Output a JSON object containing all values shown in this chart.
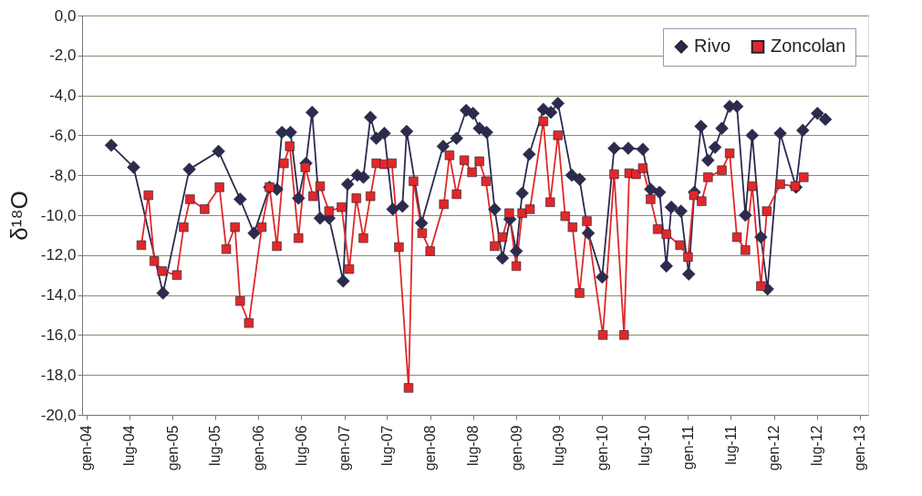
{
  "chart_data": {
    "type": "line",
    "ylabel": "δ¹⁸O",
    "xlim": [
      "2003-12-13",
      "2013-02-05"
    ],
    "xticks": [
      {
        "value": "2004-01-01",
        "label": "gen-04"
      },
      {
        "value": "2004-07-01",
        "label": "lug-04"
      },
      {
        "value": "2005-01-01",
        "label": "gen-05"
      },
      {
        "value": "2005-07-01",
        "label": "lug-05"
      },
      {
        "value": "2006-01-01",
        "label": "gen-06"
      },
      {
        "value": "2006-07-01",
        "label": "lug-06"
      },
      {
        "value": "2007-01-01",
        "label": "gen-07"
      },
      {
        "value": "2007-07-01",
        "label": "lug-07"
      },
      {
        "value": "2008-01-01",
        "label": "gen-08"
      },
      {
        "value": "2008-07-01",
        "label": "lug-08"
      },
      {
        "value": "2009-01-01",
        "label": "gen-09"
      },
      {
        "value": "2009-07-01",
        "label": "lug-09"
      },
      {
        "value": "2010-01-01",
        "label": "gen-10"
      },
      {
        "value": "2010-07-01",
        "label": "lug-10"
      },
      {
        "value": "2011-01-01",
        "label": "gen-11"
      },
      {
        "value": "2011-07-01",
        "label": "lug-11"
      },
      {
        "value": "2012-01-01",
        "label": "gen-12"
      },
      {
        "value": "2012-07-01",
        "label": "lug-12"
      },
      {
        "value": "2013-01-01",
        "label": "gen-13"
      }
    ],
    "ylim": [
      -20,
      0
    ],
    "yticks": [
      {
        "value": 0,
        "label": "0,0"
      },
      {
        "value": -2,
        "label": "-2,0"
      },
      {
        "value": -4,
        "label": "-4,0"
      },
      {
        "value": -6,
        "label": "-6,0"
      },
      {
        "value": -8,
        "label": "-8,0"
      },
      {
        "value": -10,
        "label": "-10,0"
      },
      {
        "value": -12,
        "label": "-12,0"
      },
      {
        "value": -14,
        "label": "-14,0"
      },
      {
        "value": -16,
        "label": "-16,0"
      },
      {
        "value": -18,
        "label": "-18,0"
      },
      {
        "value": -20,
        "label": "-20,0"
      }
    ],
    "grid": "y",
    "legend": "top right",
    "line_style": "solid",
    "series": [
      {
        "name": "Rivo",
        "color": "#2b2b4f",
        "marker": "diamond",
        "x": [
          "2004-04-15",
          "2004-07-19",
          "2004-11-21",
          "2005-03-13",
          "2005-07-15",
          "2005-10-15",
          "2005-12-13",
          "2006-02-17",
          "2006-03-20",
          "2006-04-11",
          "2006-05-17",
          "2006-06-20",
          "2006-07-22",
          "2006-08-17",
          "2006-09-20",
          "2006-10-28",
          "2006-12-27",
          "2007-01-15",
          "2007-02-25",
          "2007-03-23",
          "2007-04-22",
          "2007-05-17",
          "2007-06-20",
          "2007-07-26",
          "2007-09-05",
          "2007-09-23",
          "2007-11-25",
          "2008-02-25",
          "2008-04-22",
          "2008-06-02",
          "2008-07-01",
          "2008-07-28",
          "2008-08-28",
          "2008-10-01",
          "2008-11-03",
          "2008-12-05",
          "2009-01-01",
          "2009-01-26",
          "2009-02-25",
          "2009-04-26",
          "2009-05-28",
          "2009-06-27",
          "2009-08-25",
          "2009-09-27",
          "2009-11-03",
          "2010-01-01",
          "2010-02-21",
          "2010-04-22",
          "2010-06-23",
          "2010-07-26",
          "2010-09-02",
          "2010-10-01",
          "2010-10-22",
          "2010-12-02",
          "2011-01-04",
          "2011-01-28",
          "2011-02-25",
          "2011-03-27",
          "2011-04-26",
          "2011-05-25",
          "2011-06-27",
          "2011-07-28",
          "2011-09-02",
          "2011-10-01",
          "2011-11-07",
          "2011-12-05",
          "2012-01-28",
          "2012-04-04",
          "2012-05-03",
          "2012-07-04",
          "2012-08-07"
        ],
        "values": [
          -6.5,
          -7.6,
          -13.9,
          -7.7,
          -6.8,
          -9.2,
          -10.9,
          -8.6,
          -8.7,
          -5.85,
          -5.85,
          -9.15,
          -7.4,
          -4.85,
          -10.15,
          -10.15,
          -13.3,
          -8.45,
          -8.0,
          -8.1,
          -5.1,
          -6.15,
          -5.9,
          -9.7,
          -9.55,
          -5.8,
          -10.4,
          -6.55,
          -6.15,
          -4.75,
          -4.9,
          -5.65,
          -5.85,
          -9.7,
          -12.15,
          -10.2,
          -11.8,
          -8.9,
          -6.95,
          -4.7,
          -4.85,
          -4.4,
          -8.0,
          -8.2,
          -10.9,
          -13.1,
          -6.65,
          -6.65,
          -6.7,
          -8.7,
          -8.85,
          -12.55,
          -9.6,
          -9.8,
          -12.95,
          -8.85,
          -5.55,
          -7.25,
          -6.6,
          -5.65,
          -4.55,
          -4.55,
          -10.0,
          -6.0,
          -11.1,
          -13.7,
          -5.9,
          -8.6,
          -5.75,
          -4.9,
          -5.2
        ]
      },
      {
        "name": "Zoncolan",
        "color": "#e0282a",
        "marker": "square",
        "x": [
          "2004-08-21",
          "2004-09-20",
          "2004-10-15",
          "2004-11-17",
          "2005-01-19",
          "2005-02-17",
          "2005-03-16",
          "2005-05-17",
          "2005-07-19",
          "2005-08-17",
          "2005-09-23",
          "2005-10-15",
          "2005-11-21",
          "2006-01-15",
          "2006-02-17",
          "2006-03-20",
          "2006-04-19",
          "2006-05-14",
          "2006-06-20",
          "2006-07-19",
          "2006-08-21",
          "2006-09-20",
          "2006-10-28",
          "2006-12-20",
          "2007-01-22",
          "2007-02-21",
          "2007-03-23",
          "2007-04-22",
          "2007-05-17",
          "2007-06-20",
          "2007-07-22",
          "2007-08-21",
          "2007-10-01",
          "2007-10-22",
          "2007-11-28",
          "2008-01-01",
          "2008-02-28",
          "2008-03-23",
          "2008-04-22",
          "2008-05-25",
          "2008-06-27",
          "2008-07-28",
          "2008-08-25",
          "2008-10-01",
          "2008-11-03",
          "2008-12-02",
          "2009-01-01",
          "2009-01-26",
          "2009-02-28",
          "2009-04-26",
          "2009-05-25",
          "2009-06-27",
          "2009-07-28",
          "2009-08-28",
          "2009-09-27",
          "2009-10-28",
          "2010-01-04",
          "2010-02-21",
          "2010-04-04",
          "2010-04-26",
          "2010-05-25",
          "2010-06-23",
          "2010-07-26",
          "2010-08-25",
          "2010-10-01",
          "2010-11-28",
          "2011-01-01",
          "2011-01-26",
          "2011-02-28",
          "2011-03-27",
          "2011-05-25",
          "2011-06-27",
          "2011-07-28",
          "2011-09-02",
          "2011-10-01",
          "2011-11-07",
          "2011-12-02",
          "2012-01-28",
          "2012-04-01",
          "2012-05-07"
        ],
        "values": [
          -11.5,
          -9.0,
          -12.3,
          -12.8,
          -13.0,
          -10.6,
          -9.2,
          -9.7,
          -8.6,
          -11.7,
          -10.6,
          -14.3,
          -15.4,
          -10.6,
          -8.6,
          -11.55,
          -7.4,
          -6.55,
          -11.15,
          -7.6,
          -9.05,
          -8.55,
          -9.8,
          -9.6,
          -12.7,
          -9.15,
          -11.15,
          -9.05,
          -7.4,
          -7.45,
          -7.4,
          -11.6,
          -18.65,
          -8.3,
          -10.9,
          -11.8,
          -9.45,
          -7.0,
          -8.95,
          -7.25,
          -7.85,
          -7.3,
          -8.3,
          -11.55,
          -11.1,
          -9.9,
          -12.55,
          -9.9,
          -9.7,
          -5.3,
          -9.35,
          -6.0,
          -10.05,
          -10.6,
          -13.9,
          -10.3,
          -16.0,
          -7.95,
          -16.0,
          -7.9,
          -7.95,
          -7.65,
          -9.2,
          -10.7,
          -10.95,
          -11.5,
          -12.1,
          -9.0,
          -9.3,
          -8.1,
          -7.75,
          -6.9,
          -11.1,
          -11.75,
          -8.55,
          -13.55,
          -9.8,
          -8.45,
          -8.55,
          -8.1
        ]
      }
    ]
  }
}
